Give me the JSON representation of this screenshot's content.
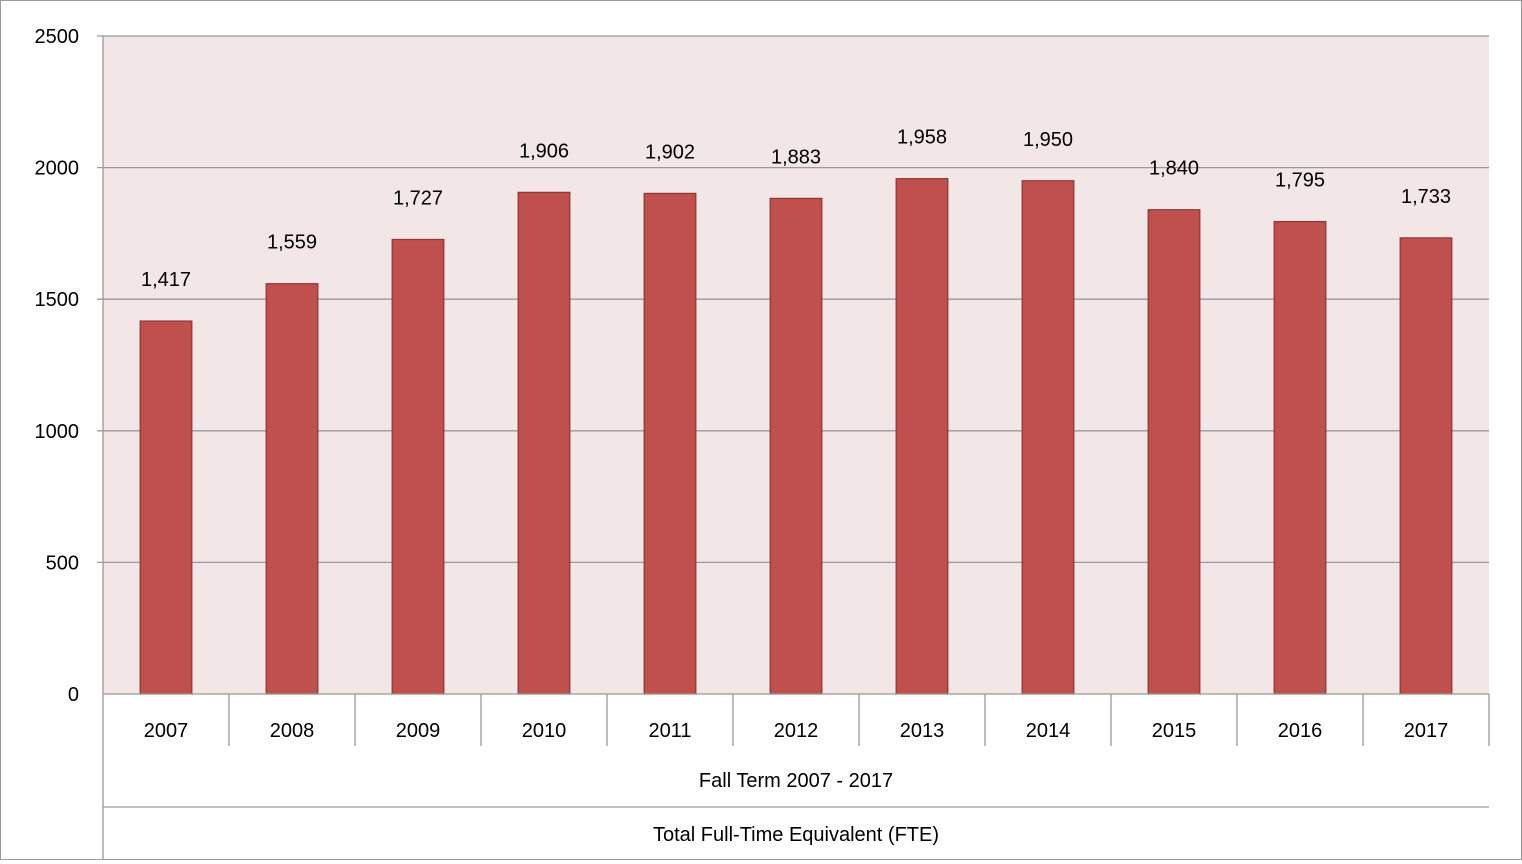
{
  "chart_data": {
    "type": "bar",
    "categories": [
      "2007",
      "2008",
      "2009",
      "2010",
      "2011",
      "2012",
      "2013",
      "2014",
      "2015",
      "2016",
      "2017"
    ],
    "values": [
      1417,
      1559,
      1727,
      1906,
      1902,
      1883,
      1958,
      1950,
      1840,
      1795,
      1733
    ],
    "data_labels": [
      "1,417",
      "1,559",
      "1,727",
      "1,906",
      "1,902",
      "1,883",
      "1,958",
      "1,950",
      "1,840",
      "1,795",
      "1,733"
    ],
    "y_ticks": [
      "0",
      "500",
      "1000",
      "1500",
      "2000",
      "2500"
    ],
    "ylim": [
      0,
      2500
    ],
    "grid": true,
    "legend": "none",
    "category_group_label": "Fall Term 2007 - 2017",
    "series_label": "Total Full-Time Equivalent (FTE)",
    "colors": {
      "bar_fill": "#c0504d",
      "bar_stroke": "#8c3836",
      "plot_background": "#f2e6e6",
      "gridline": "#9a9a9a"
    }
  }
}
